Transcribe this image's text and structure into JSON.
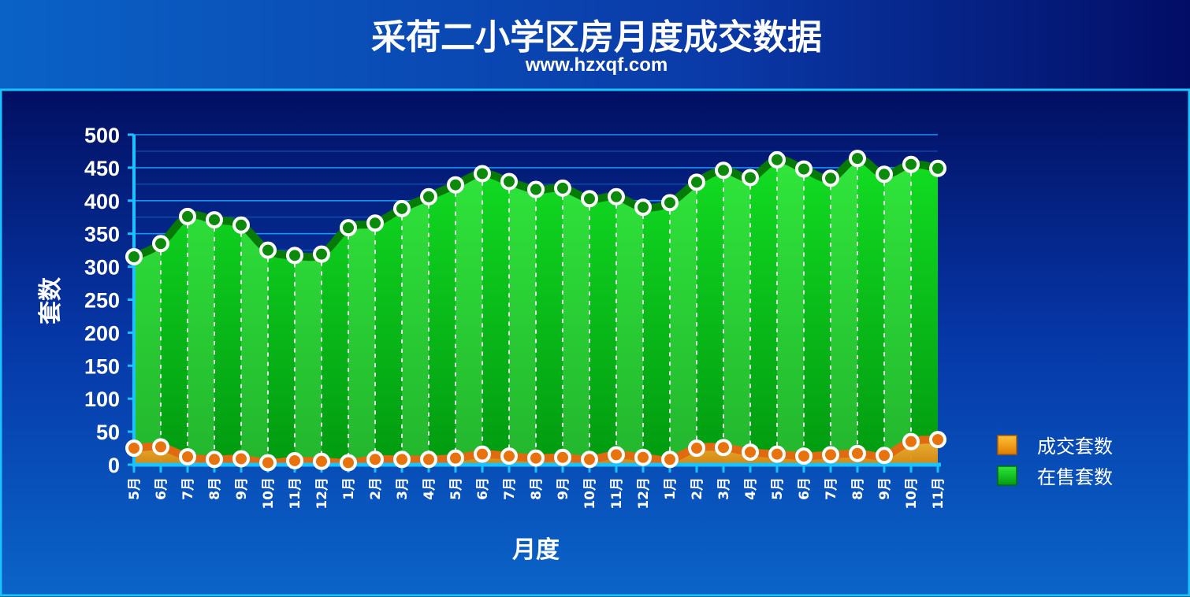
{
  "header": {
    "title": "采荷二小学区房月度成交数据",
    "subtitle": "www.hzxqf.com"
  },
  "colors": {
    "header_bg_top": "#0a5ec0",
    "header_bg_bottom": "#0a2a9e",
    "plot_bg_top": "#021a6a",
    "plot_bg_bottom": "#0a5ac0",
    "accent_border": "#19c3ff",
    "gridline": "#1aa0ff",
    "sale_area": "#00c020",
    "sale_area_light": "#33dd44",
    "sale_line": "#067a06",
    "deal_area": "#f5a623",
    "deal_line": "#e06a10",
    "marker_fill": "#ffffff"
  },
  "chart_data": {
    "type": "area",
    "title": "采荷二小学区房月度成交数据",
    "subtitle": "www.hzxqf.com",
    "xlabel": "月度",
    "ylabel": "套数",
    "ylim": [
      0,
      500
    ],
    "yticks": [
      0,
      50,
      100,
      150,
      200,
      250,
      300,
      350,
      400,
      450,
      500
    ],
    "grid": true,
    "legend_position": "right-bottom",
    "categories": [
      "5月",
      "6月",
      "7月",
      "8月",
      "9月",
      "10月",
      "11月",
      "12月",
      "1月",
      "2月",
      "3月",
      "4月",
      "5月",
      "6月",
      "7月",
      "8月",
      "9月",
      "10月",
      "11月",
      "12月",
      "1月",
      "2月",
      "3月",
      "4月",
      "5月",
      "6月",
      "7月",
      "8月",
      "9月",
      "10月",
      "11月"
    ],
    "series": [
      {
        "name": "在售套数",
        "values": [
          315,
          335,
          376,
          371,
          363,
          325,
          317,
          319,
          359,
          366,
          388,
          406,
          424,
          441,
          429,
          417,
          419,
          403,
          406,
          390,
          397,
          428,
          446,
          435,
          462,
          448,
          434,
          464,
          440,
          455,
          449
        ]
      },
      {
        "name": "成交套数",
        "values": [
          25,
          27,
          12,
          8,
          9,
          3,
          6,
          5,
          3,
          8,
          8,
          8,
          10,
          16,
          13,
          10,
          11,
          8,
          15,
          11,
          8,
          25,
          26,
          19,
          16,
          13,
          15,
          17,
          14,
          35,
          38
        ]
      }
    ]
  },
  "legend": {
    "items": [
      {
        "label": "成交套数",
        "icon": "orange-square-icon"
      },
      {
        "label": "在售套数",
        "icon": "green-square-icon"
      }
    ]
  }
}
